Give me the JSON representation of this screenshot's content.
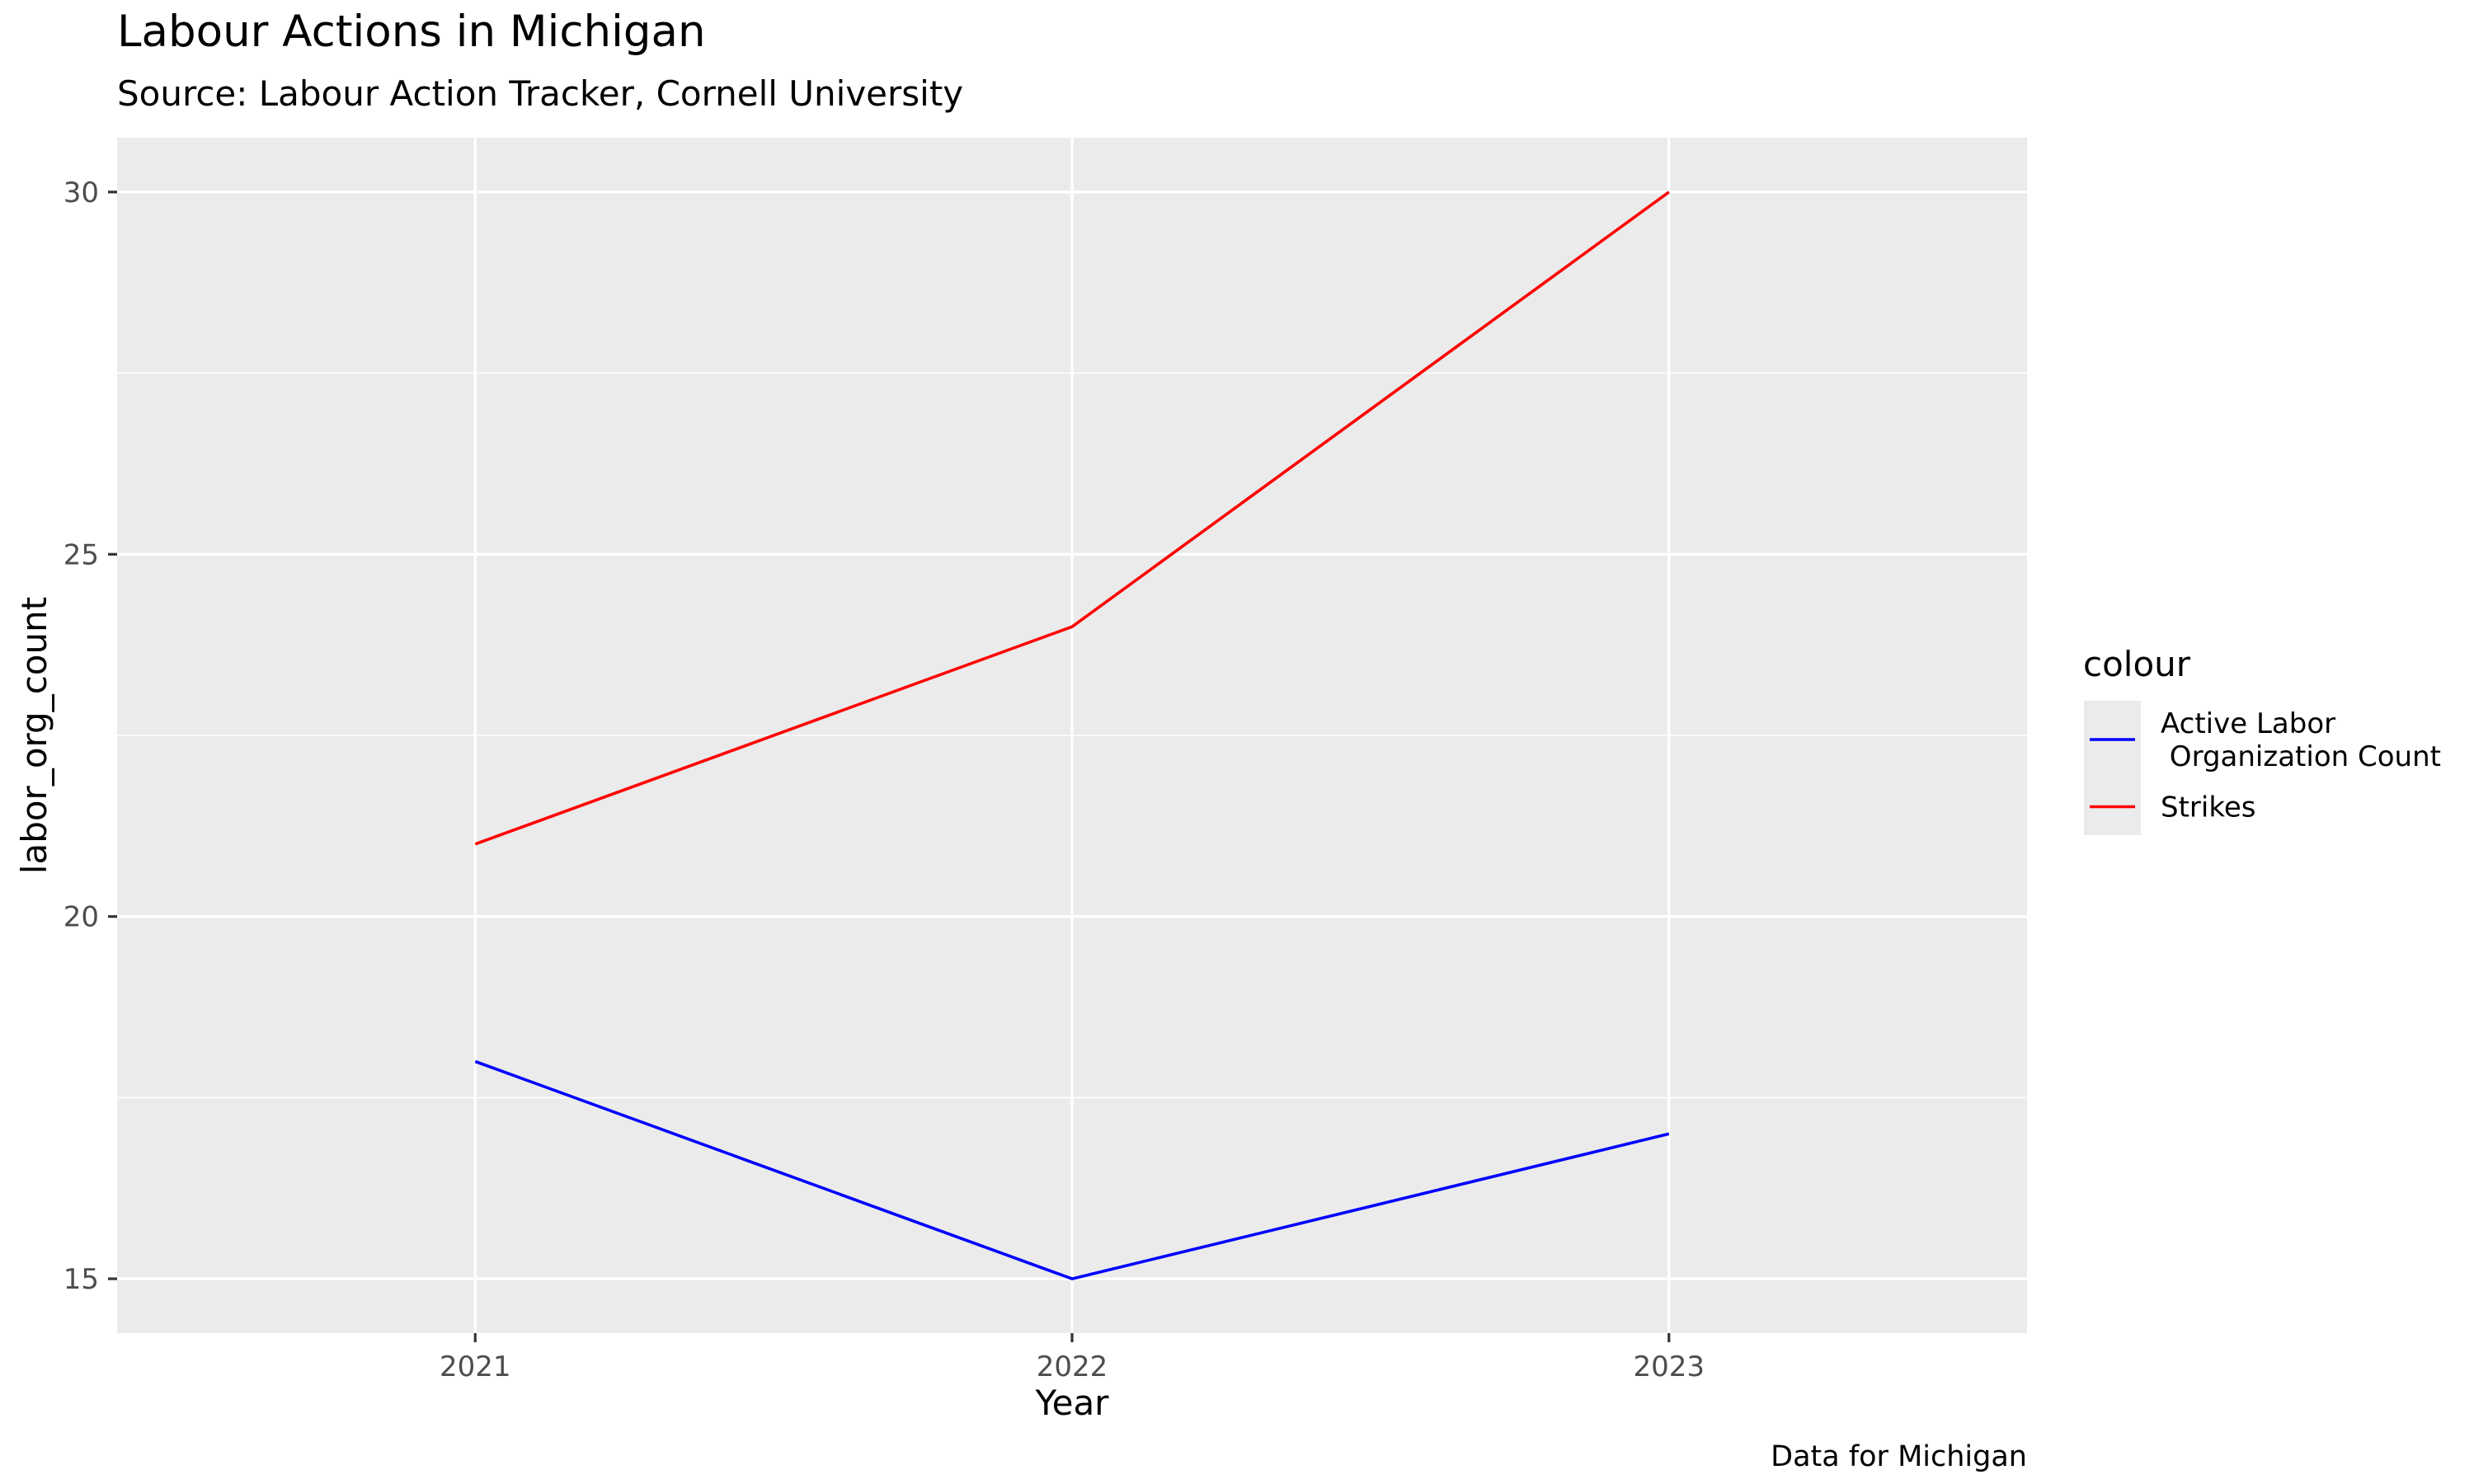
{
  "chart_data": {
    "type": "line",
    "title": "Labour Actions in Michigan",
    "subtitle": "Source: Labour Action Tracker, Cornell University",
    "caption": "Data for Michigan",
    "xlabel": "Year",
    "ylabel": "labor_org_count",
    "x": [
      "2021",
      "2022",
      "2023"
    ],
    "xlim": [
      0.4,
      3.6
    ],
    "ylim": [
      14.25,
      30.75
    ],
    "yticks": [
      15,
      20,
      25,
      30
    ],
    "y_minor_ticks": [
      17.5,
      22.5,
      27.5
    ],
    "grid": true,
    "legend": {
      "title": "colour",
      "position": "right",
      "entries": [
        {
          "label_lines": [
            "Active Labor",
            " Organization Count"
          ],
          "color": "#0000FF"
        },
        {
          "label_lines": [
            "Strikes"
          ],
          "color": "#FF0000"
        }
      ]
    },
    "series": [
      {
        "name": "Active Labor Organization Count",
        "color": "#0000FF",
        "values": [
          18,
          15,
          17
        ]
      },
      {
        "name": "Strikes",
        "color": "#FF0000",
        "values": [
          21,
          24,
          30
        ]
      }
    ],
    "colors": {
      "panel_background": "#EBEBEB",
      "grid_line": "#FFFFFF",
      "axis_text": "#4D4D4D",
      "text": "#000000",
      "tick": "#333333"
    }
  }
}
